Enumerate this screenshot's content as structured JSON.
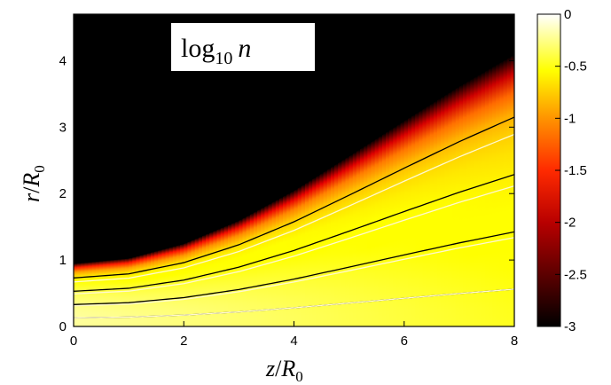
{
  "chart_data": {
    "type": "heatmap",
    "title": "log10 n",
    "title_parts": {
      "main": "log",
      "sub": "10",
      "var": "n"
    },
    "xlabel": "z/R0",
    "xlabel_parts": {
      "num": "z",
      "den": "R",
      "den_sub": "0"
    },
    "ylabel": "r/R0",
    "ylabel_parts": {
      "num": "r",
      "den": "R",
      "den_sub": "0"
    },
    "xlim": [
      0,
      8
    ],
    "ylim": [
      0,
      4.7
    ],
    "x_ticks": [
      0,
      2,
      4,
      6,
      8
    ],
    "x_tick_labels": [
      "0",
      "2",
      "4",
      "6",
      "8"
    ],
    "y_ticks": [
      0,
      1,
      2,
      3,
      4
    ],
    "y_tick_labels": [
      "0",
      "1",
      "2",
      "3",
      "4"
    ],
    "colorbar": {
      "range": [
        -3,
        0
      ],
      "ticks": [
        0,
        -0.5,
        -1,
        -1.5,
        -2,
        -2.5,
        -3
      ],
      "tick_labels": [
        "0",
        "-0.5",
        "-1",
        "-1.5",
        "-2",
        "-2.5",
        "-3"
      ],
      "colormap": "hot"
    },
    "boundary": {
      "description": "plasma boundary r(z); zero density above",
      "z": [
        0,
        1,
        2,
        3,
        4,
        5,
        6,
        7,
        8
      ],
      "r": [
        0.95,
        1.03,
        1.25,
        1.6,
        2.05,
        2.57,
        3.1,
        3.62,
        4.1
      ]
    },
    "black_lines_r0": [
      0.13,
      0.33,
      0.53,
      0.73
    ],
    "white_lines_r0": [
      0.13,
      0.31,
      0.49,
      0.67
    ],
    "grid": false,
    "colors": {
      "background": "#000000",
      "black_lines": "#000000",
      "white_lines": "#fff8d0"
    }
  }
}
